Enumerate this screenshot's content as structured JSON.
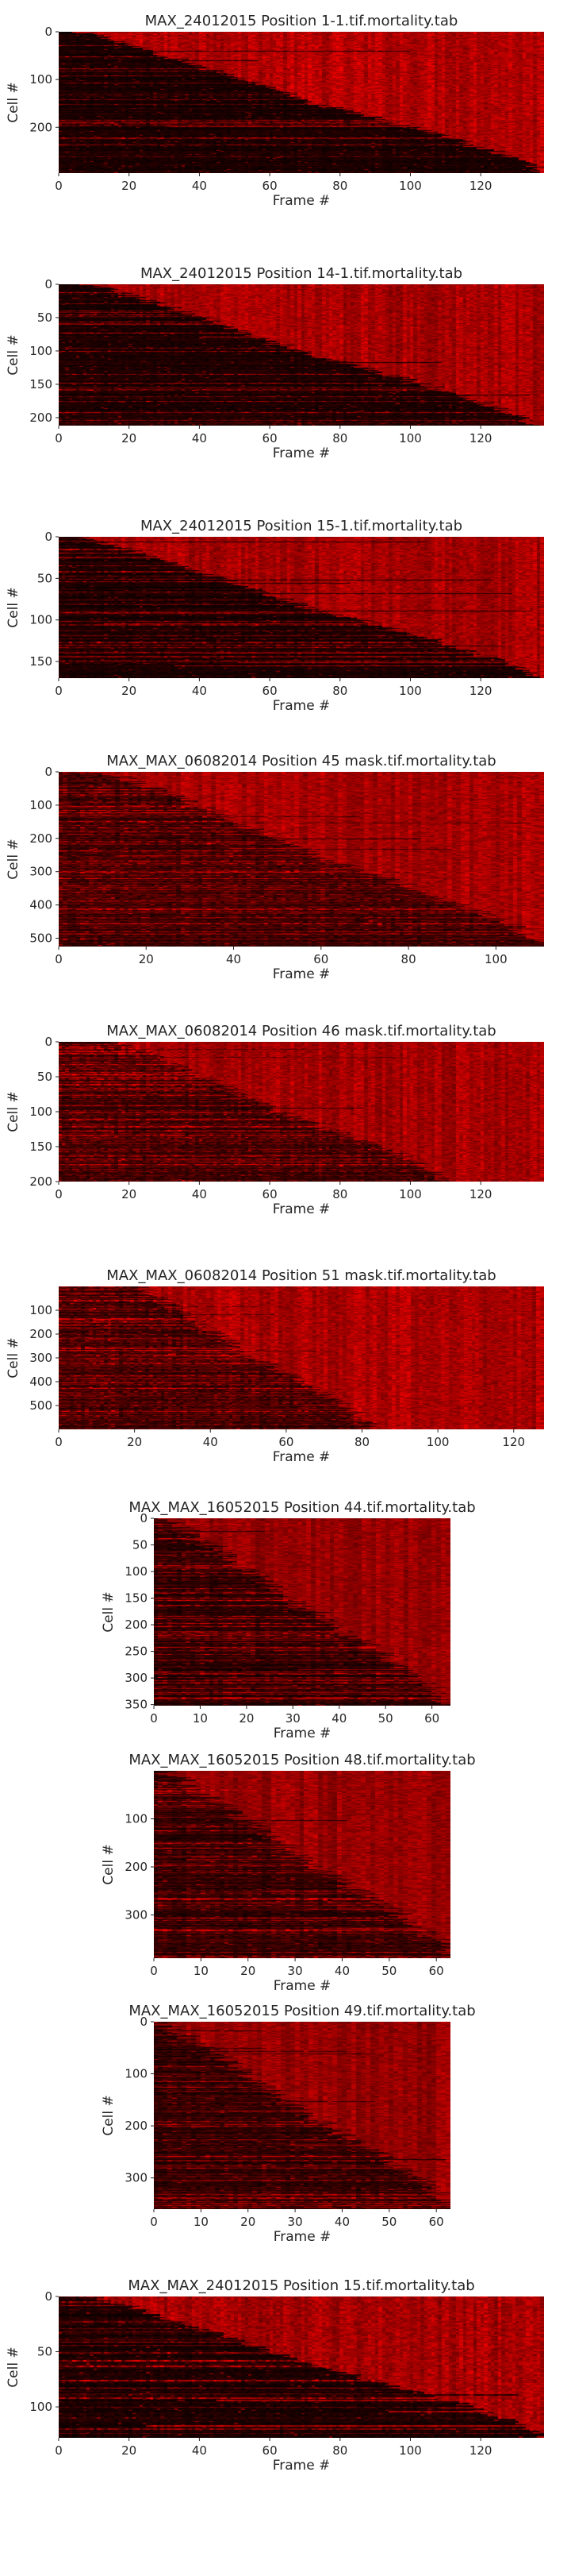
{
  "chart_data": [
    {
      "type": "heatmap",
      "title": "MAX_24012015 Position 1-1.tif.mortality.tab",
      "xlabel": "Frame #",
      "ylabel": "Cell #",
      "xlim": [
        0,
        138
      ],
      "ylim": [
        0,
        296
      ],
      "xticks": [
        0,
        20,
        40,
        60,
        80,
        100,
        120
      ],
      "yticks": [
        0,
        100,
        200
      ],
      "colormap": [
        "#000000",
        "#ff0000"
      ],
      "death_frame_range": [
        5,
        138
      ],
      "background_level": 0.12,
      "dead_level": 0.75
    },
    {
      "type": "heatmap",
      "title": "MAX_24012015 Position 14-1.tif.mortality.tab",
      "xlabel": "Frame #",
      "ylabel": "Cell #",
      "xlim": [
        0,
        138
      ],
      "ylim": [
        0,
        212
      ],
      "xticks": [
        0,
        20,
        40,
        60,
        80,
        100,
        120
      ],
      "yticks": [
        0,
        50,
        100,
        150,
        200
      ],
      "colormap": [
        "#000000",
        "#ff0000"
      ],
      "death_frame_range": [
        8,
        135
      ],
      "background_level": 0.12,
      "dead_level": 0.7
    },
    {
      "type": "heatmap",
      "title": "MAX_24012015 Position 15-1.tif.mortality.tab",
      "xlabel": "Frame #",
      "ylabel": "Cell #",
      "xlim": [
        0,
        138
      ],
      "ylim": [
        0,
        170
      ],
      "xticks": [
        0,
        20,
        40,
        60,
        80,
        100,
        120
      ],
      "yticks": [
        0,
        50,
        100,
        150
      ],
      "colormap": [
        "#000000",
        "#ff0000"
      ],
      "death_frame_range": [
        5,
        135
      ],
      "background_level": 0.12,
      "dead_level": 0.7
    },
    {
      "type": "heatmap",
      "title": "MAX_MAX_06082014 Position 45 mask.tif.mortality.tab",
      "xlabel": "Frame #",
      "ylabel": "Cell #",
      "xlim": [
        0,
        111
      ],
      "ylim": [
        0,
        525
      ],
      "xticks": [
        0,
        20,
        40,
        60,
        80,
        100
      ],
      "yticks": [
        0,
        100,
        200,
        300,
        400,
        500
      ],
      "colormap": [
        "#000000",
        "#ff0000"
      ],
      "death_frame_range": [
        10,
        111
      ],
      "background_level": 0.3,
      "dead_level": 0.7
    },
    {
      "type": "heatmap",
      "title": "MAX_MAX_06082014 Position 46 mask.tif.mortality.tab",
      "xlabel": "Frame #",
      "ylabel": "Cell #",
      "xlim": [
        0,
        138
      ],
      "ylim": [
        0,
        200
      ],
      "xticks": [
        0,
        20,
        40,
        60,
        80,
        100,
        120
      ],
      "yticks": [
        0,
        50,
        100,
        150,
        200
      ],
      "colormap": [
        "#000000",
        "#ff0000"
      ],
      "death_frame_range": [
        15,
        110
      ],
      "background_level": 0.32,
      "dead_level": 0.7
    },
    {
      "type": "heatmap",
      "title": "MAX_MAX_06082014 Position 51 mask.tif.mortality.tab",
      "xlabel": "Frame #",
      "ylabel": "Cell #",
      "xlim": [
        0,
        128
      ],
      "ylim": [
        0,
        600
      ],
      "xticks": [
        0,
        20,
        40,
        60,
        80,
        100,
        120
      ],
      "yticks": [
        100,
        200,
        300,
        400,
        500
      ],
      "colormap": [
        "#000000",
        "#ff0000"
      ],
      "death_frame_range": [
        20,
        82
      ],
      "background_level": 0.32,
      "dead_level": 0.72
    },
    {
      "type": "heatmap",
      "title": "MAX_MAX_16052015 Position 44.tif.mortality.tab",
      "xlabel": "Frame #",
      "ylabel": "Cell #",
      "xlim": [
        0,
        64
      ],
      "ylim": [
        0,
        352
      ],
      "xticks": [
        0,
        10,
        20,
        30,
        40,
        50,
        60
      ],
      "yticks": [
        0,
        50,
        100,
        150,
        200,
        250,
        300,
        350
      ],
      "colormap": [
        "#000000",
        "#ff0000"
      ],
      "death_frame_range": [
        2,
        63
      ],
      "background_level": 0.2,
      "dead_level": 0.62
    },
    {
      "type": "heatmap",
      "title": "MAX_MAX_16052015 Position 48.tif.mortality.tab",
      "xlabel": "Frame #",
      "ylabel": "Cell #",
      "xlim": [
        0,
        63
      ],
      "ylim": [
        0,
        390
      ],
      "xticks": [
        0,
        10,
        20,
        30,
        40,
        50,
        60
      ],
      "yticks": [
        100,
        200,
        300
      ],
      "colormap": [
        "#000000",
        "#ff0000"
      ],
      "death_frame_range": [
        2,
        63
      ],
      "background_level": 0.22,
      "dead_level": 0.62
    },
    {
      "type": "heatmap",
      "title": "MAX_MAX_16052015 Position 49.tif.mortality.tab",
      "xlabel": "Frame #",
      "ylabel": "Cell #",
      "xlim": [
        0,
        63
      ],
      "ylim": [
        0,
        360
      ],
      "xticks": [
        0,
        10,
        20,
        30,
        40,
        50,
        60
      ],
      "yticks": [
        0,
        100,
        200,
        300
      ],
      "colormap": [
        "#000000",
        "#ff0000"
      ],
      "death_frame_range": [
        1,
        63
      ],
      "background_level": 0.22,
      "dead_level": 0.62
    },
    {
      "type": "heatmap",
      "title": "MAX_MAX_24012015 Position 15.tif.mortality.tab",
      "xlabel": "Frame #",
      "ylabel": "Cell #",
      "xlim": [
        0,
        138
      ],
      "ylim": [
        0,
        128
      ],
      "xticks": [
        0,
        20,
        40,
        60,
        80,
        100,
        120
      ],
      "yticks": [
        0,
        50,
        100
      ],
      "colormap": [
        "#000000",
        "#ff0000"
      ],
      "death_frame_range": [
        8,
        138
      ],
      "background_level": 0.14,
      "dead_level": 0.7
    }
  ]
}
